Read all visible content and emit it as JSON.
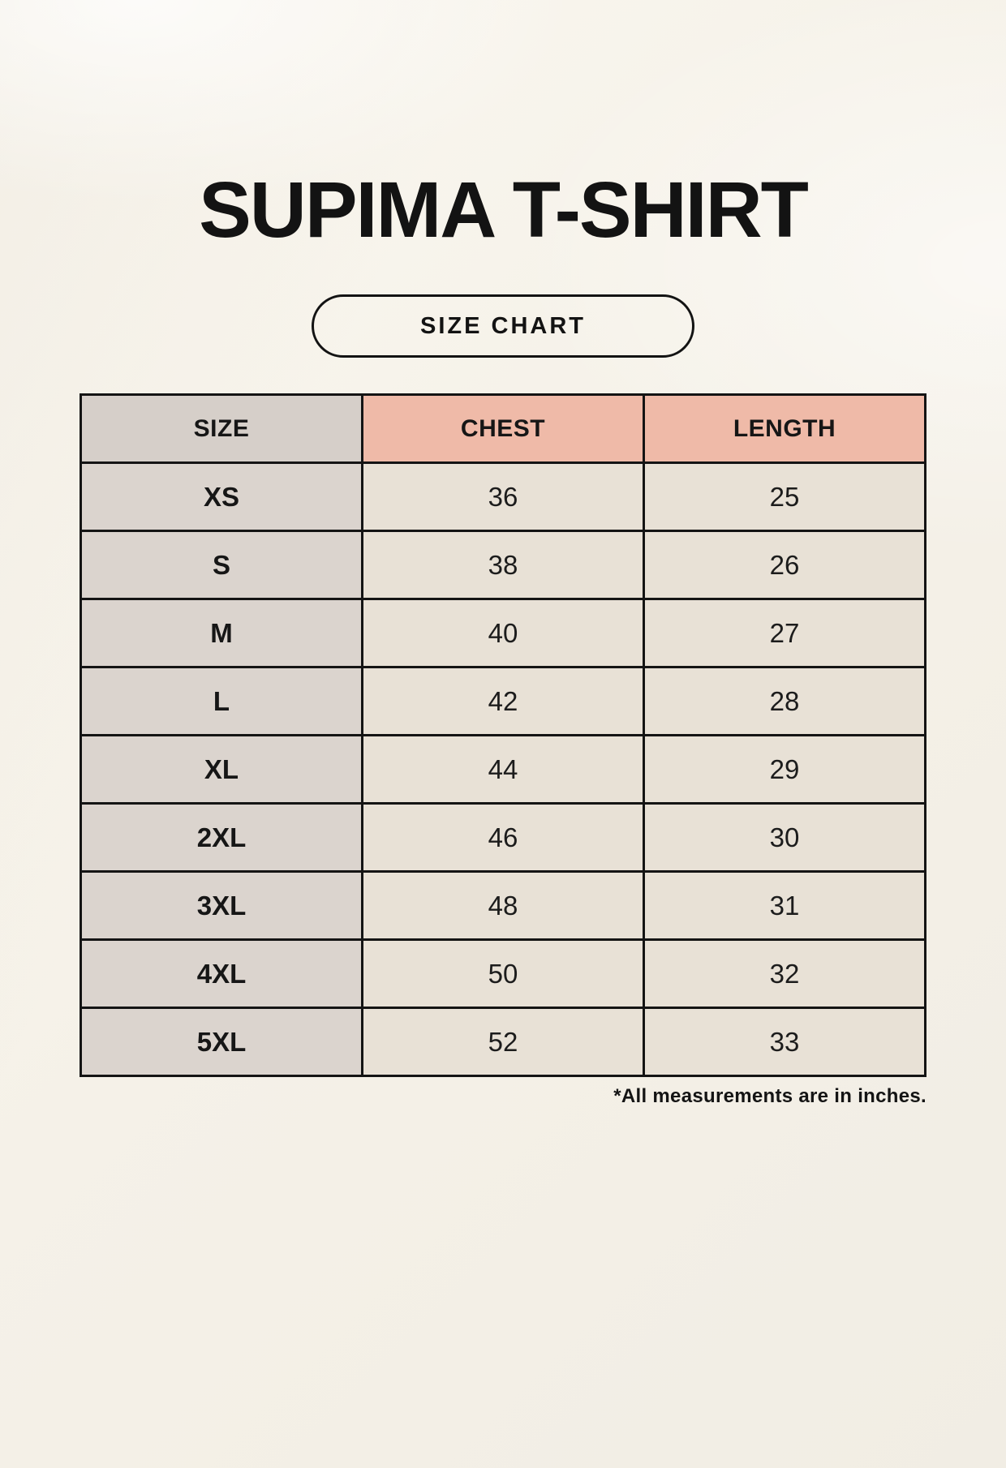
{
  "title": "SUPIMA T-SHIRT",
  "badge_label": "SIZE CHART",
  "chart_data": {
    "type": "table",
    "title": "SUPIMA T-SHIRT",
    "columns": [
      "SIZE",
      "CHEST",
      "LENGTH"
    ],
    "rows": [
      [
        "XS",
        36,
        25
      ],
      [
        "S",
        38,
        26
      ],
      [
        "M",
        40,
        27
      ],
      [
        "L",
        42,
        28
      ],
      [
        "XL",
        44,
        29
      ],
      [
        "2XL",
        46,
        30
      ],
      [
        "3XL",
        48,
        31
      ],
      [
        "4XL",
        50,
        32
      ],
      [
        "5XL",
        52,
        33
      ]
    ],
    "units_note": "*All measurements are in inches.",
    "layout": {
      "accent_header_columns": [
        "CHEST",
        "LENGTH"
      ],
      "grid": "on"
    }
  },
  "colors": {
    "page_background": "#f5f1e8",
    "table_border": "#141414",
    "size_header_bg": "#d6cfc9",
    "accent_header_bg": "#efbaa8",
    "size_column_bg": "#dbd4ce",
    "value_cell_bg": "#e8e1d6",
    "text": "#161616"
  }
}
